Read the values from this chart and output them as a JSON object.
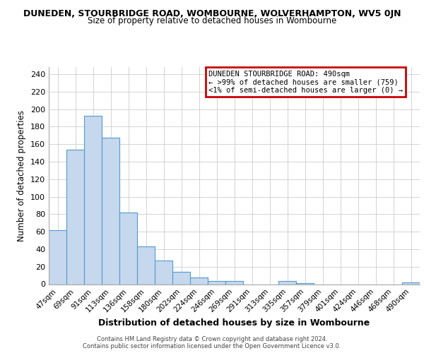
{
  "title": "DUNEDEN, STOURBRIDGE ROAD, WOMBOURNE, WOLVERHAMPTON, WV5 0JN",
  "subtitle": "Size of property relative to detached houses in Wombourne",
  "xlabel": "Distribution of detached houses by size in Wombourne",
  "ylabel": "Number of detached properties",
  "bar_labels": [
    "47sqm",
    "69sqm",
    "91sqm",
    "113sqm",
    "136sqm",
    "158sqm",
    "180sqm",
    "202sqm",
    "224sqm",
    "246sqm",
    "269sqm",
    "291sqm",
    "313sqm",
    "335sqm",
    "357sqm",
    "379sqm",
    "401sqm",
    "424sqm",
    "446sqm",
    "468sqm",
    "490sqm"
  ],
  "bar_values": [
    62,
    154,
    192,
    167,
    82,
    43,
    27,
    14,
    8,
    4,
    4,
    0,
    0,
    4,
    1,
    0,
    0,
    0,
    0,
    0,
    2
  ],
  "bar_color": "#c5d8ed",
  "bar_edge_color": "#5599cc",
  "ylim": [
    0,
    248
  ],
  "yticks": [
    0,
    20,
    40,
    60,
    80,
    100,
    120,
    140,
    160,
    180,
    200,
    220,
    240
  ],
  "annotation_title": "DUNEDEN STOURBRIDGE ROAD: 490sqm",
  "annotation_line1": "← >99% of detached houses are smaller (759)",
  "annotation_line2": "<1% of semi-detached houses are larger (0) →",
  "annotation_box_color": "#cc0000",
  "footer_line1": "Contains HM Land Registry data © Crown copyright and database right 2024.",
  "footer_line2": "Contains public sector information licensed under the Open Government Licence v3.0.",
  "background_color": "#ffffff",
  "grid_color": "#cccccc"
}
